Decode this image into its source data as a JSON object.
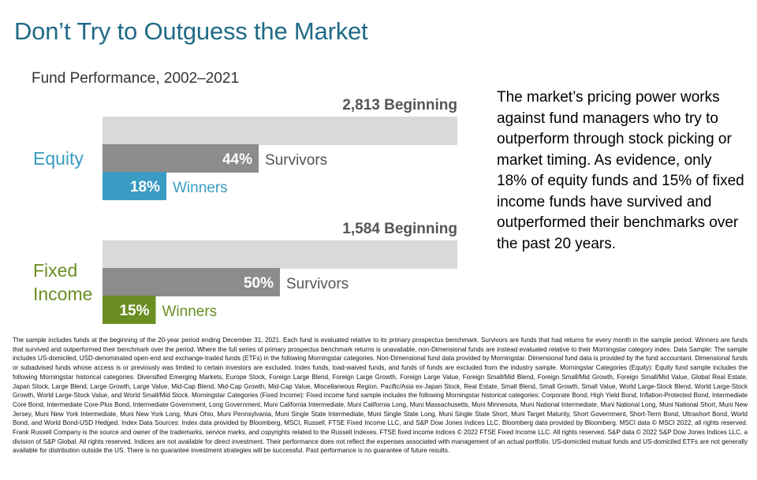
{
  "title": "Don’t Try to Outguess the Market",
  "subtitle": "Fund Performance, 2002–2021",
  "colors": {
    "title": "#1f6a86",
    "beginning_bar": "#d9d9d9",
    "survivors_bar": "#8c8c8c",
    "equity_winners": "#3a9cc2",
    "fixed_income_winners": "#6b8e23"
  },
  "chart_data": {
    "type": "bar",
    "groups": [
      {
        "name": "Equity",
        "label_lines": [
          "Equity"
        ],
        "label_color": "#3a9cc2",
        "beginning": 2813,
        "beginning_label": "2,813 Beginning",
        "survivors_pct": 44,
        "survivors_value_label": "44%",
        "survivors_label": "Survivors",
        "winners_pct": 18,
        "winners_value_label": "18%",
        "winners_label": "Winners",
        "winners_color": "#3a9cc2"
      },
      {
        "name": "Fixed Income",
        "label_lines": [
          "Fixed",
          "Income"
        ],
        "label_color": "#6b8e23",
        "beginning": 1584,
        "beginning_label": "1,584 Beginning",
        "survivors_pct": 50,
        "survivors_value_label": "50%",
        "survivors_label": "Survivors",
        "winners_pct": 15,
        "winners_value_label": "15%",
        "winners_label": "Winners",
        "winners_color": "#6b8e23"
      }
    ]
  },
  "side_text": "The market’s pricing power works against fund managers who try to outperform through stock picking or market timing. As evidence, only 18% of equity funds and 15% of fixed income funds have survived and outperformed their benchmarks over the past 20 years.",
  "footnote": "The sample includes funds at the beginning of the 20-year period ending December 31, 2021. Each fund is evaluated relative to its primary prospectus benchmark. Survivors are funds that had returns for every month in the sample period. Winners are funds that survived and outperformed their benchmark over the period. Where the full series of primary prospectus benchmark returns is unavailable, non-Dimensional funds are instead evaluated relative to their Morningstar category index. Data Sample: The sample includes US-domiciled, USD-denominated open-end and exchange-traded funds (ETFs) in the following Morningstar categories. Non-Dimensional fund data provided by Morningstar. Dimensional fund data is provided by the fund accountant. Dimensional funds or subadvised funds whose access is or previously was limited to certain investors are excluded. Index funds, load-waived funds, and funds of funds are excluded from the industry sample. Morningstar Categories (Equity): Equity fund sample includes the following Morningstar historical categories: Diversified Emerging Markets, Europe Stock, Foreign Large Blend, Foreign Large Growth, Foreign Large Value, Foreign Small/Mid Blend, Foreign Small/Mid Growth, Foreign Small/Mid Value, Global Real Estate, Japan Stock, Large Blend, Large Growth, Large Value, Mid-Cap Blend, Mid-Cap Growth, Mid-Cap Value, Miscellaneous Region, Pacific/Asia ex-Japan Stock, Real Estate, Small Blend, Small Growth, Small Value, World Large-Stock Blend, World Large-Stock Growth, World Large-Stock Value, and World Small/Mid Stock. Morningstar Categories (Fixed Income): Fixed income fund sample includes the following Morningstar historical categories: Corporate Bond, High Yield Bond, Inflation-Protected Bond, Intermediate Core Bond, Intermediate Core-Plus Bond, Intermediate Government, Long Government, Muni California Intermediate, Muni California Long, Muni Massachusetts, Muni Minnesota, Muni National Intermediate, Muni National Long, Muni National Short, Muni New Jersey, Muni New York Intermediate, Muni New York Long, Muni Ohio, Muni Pennsylvania, Muni Single State Intermediate, Muni Single State Long, Muni Single State Short, Muni Target Maturity, Short Government, Short-Term Bond, Ultrashort Bond, World Bond, and World Bond-USD Hedged. Index Data Sources: Index data provided by Bloomberg, MSCI, Russell, FTSE Fixed Income LLC, and S&P Dow Jones Indices LLC. Bloomberg data provided by Bloomberg. MSCI data © MSCI 2022, all rights reserved. Frank Russell Company is the source and owner of the trademarks, service marks, and copyrights related to the Russell Indexes. FTSE fixed income indices © 2022 FTSE Fixed Income LLC. All rights reserved. S&P data © 2022 S&P Dow Jones Indices LLC, a division of S&P Global. All rights reserved. Indices are not available for direct investment. Their performance does not reflect the expenses associated with management of an actual portfolio. US-domiciled mutual funds and US-domiciled ETFs are not generally available for distribution outside the US. There is no guarantee investment strategies will be successful. Past performance is no guarantee of future results."
}
